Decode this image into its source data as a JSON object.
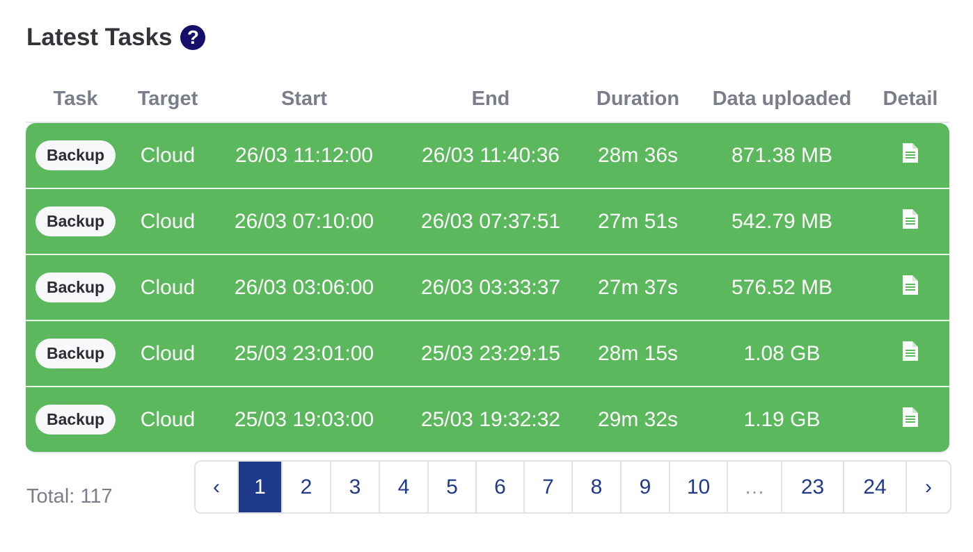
{
  "title": "Latest Tasks",
  "help_icon": "question-circle-icon",
  "columns": [
    "Task",
    "Target",
    "Start",
    "End",
    "Duration",
    "Data uploaded",
    "Detail"
  ],
  "rows": [
    {
      "task": "Backup",
      "target": "Cloud",
      "start": "26/03 11:12:00",
      "end": "26/03 11:40:36",
      "duration": "28m 36s",
      "data": "871.38 MB"
    },
    {
      "task": "Backup",
      "target": "Cloud",
      "start": "26/03 07:10:00",
      "end": "26/03 07:37:51",
      "duration": "27m 51s",
      "data": "542.79 MB"
    },
    {
      "task": "Backup",
      "target": "Cloud",
      "start": "26/03 03:06:00",
      "end": "26/03 03:33:37",
      "duration": "27m 37s",
      "data": "576.52 MB"
    },
    {
      "task": "Backup",
      "target": "Cloud",
      "start": "25/03 23:01:00",
      "end": "25/03 23:29:15",
      "duration": "28m 15s",
      "data": "1.08 GB"
    },
    {
      "task": "Backup",
      "target": "Cloud",
      "start": "25/03 19:03:00",
      "end": "25/03 19:32:32",
      "duration": "29m 32s",
      "data": "1.19 GB"
    }
  ],
  "row_color": "#5cb85c",
  "total": "Total: 117",
  "pagination": {
    "prev": "‹",
    "pages": [
      "1",
      "2",
      "3",
      "4",
      "5",
      "6",
      "7",
      "8",
      "9",
      "10",
      "…",
      "23",
      "24"
    ],
    "next": "›",
    "current": "1",
    "accent": "#1f3a8a"
  }
}
